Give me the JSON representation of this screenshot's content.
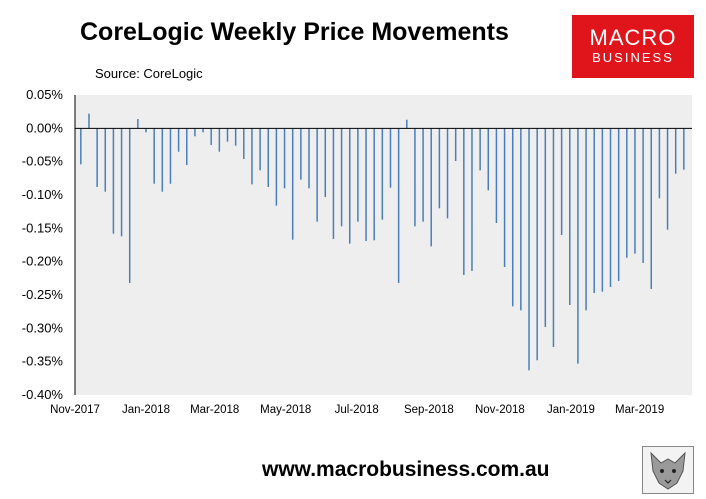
{
  "title": "CoreLogic Weekly Price Movements",
  "source": "Source: CoreLogic",
  "logo": {
    "line1": "MACRO",
    "line2": "BUSINESS"
  },
  "footer": "www.macrobusiness.com.au",
  "colors": {
    "bar": "#4a7ebb",
    "plot_bg": "#eeeeee",
    "logo_bg": "#e0141b"
  },
  "chart_data": {
    "type": "bar",
    "title": "CoreLogic Weekly Price Movements",
    "source": "Source: CoreLogic",
    "y_unit": "%",
    "ylim": [
      -0.4,
      0.05
    ],
    "y_ticks": [
      "0.05%",
      "0.00%",
      "-0.05%",
      "-0.10%",
      "-0.15%",
      "-0.20%",
      "-0.25%",
      "-0.30%",
      "-0.35%",
      "-0.40%"
    ],
    "y_tick_values": [
      0.05,
      0.0,
      -0.05,
      -0.1,
      -0.15,
      -0.2,
      -0.25,
      -0.3,
      -0.35,
      -0.4
    ],
    "x_ticks": [
      "Nov-2017",
      "Jan-2018",
      "Mar-2018",
      "May-2018",
      "Jul-2018",
      "Sep-2018",
      "Nov-2018",
      "Jan-2019",
      "Mar-2019"
    ],
    "x_tick_dates": [
      "2017-11-01",
      "2018-01-01",
      "2018-03-01",
      "2018-05-01",
      "2018-07-01",
      "2018-09-01",
      "2018-11-01",
      "2019-01-01",
      "2019-03-01"
    ],
    "grid": false,
    "legend": "none",
    "series": [
      {
        "points": [
          {
            "date": "2017-11-06",
            "value": -0.054
          },
          {
            "date": "2017-11-13",
            "value": 0.022
          },
          {
            "date": "2017-11-20",
            "value": -0.088
          },
          {
            "date": "2017-11-27",
            "value": -0.095
          },
          {
            "date": "2017-12-04",
            "value": -0.158
          },
          {
            "date": "2017-12-11",
            "value": -0.162
          },
          {
            "date": "2017-12-18",
            "value": -0.232
          },
          {
            "date": "2017-12-25",
            "value": 0.014
          },
          {
            "date": "2018-01-01",
            "value": -0.006
          },
          {
            "date": "2018-01-08",
            "value": -0.083
          },
          {
            "date": "2018-01-15",
            "value": -0.095
          },
          {
            "date": "2018-01-22",
            "value": -0.083
          },
          {
            "date": "2018-01-29",
            "value": -0.035
          },
          {
            "date": "2018-02-05",
            "value": -0.055
          },
          {
            "date": "2018-02-12",
            "value": -0.012
          },
          {
            "date": "2018-02-19",
            "value": -0.006
          },
          {
            "date": "2018-02-26",
            "value": -0.025
          },
          {
            "date": "2018-03-05",
            "value": -0.035
          },
          {
            "date": "2018-03-12",
            "value": -0.02
          },
          {
            "date": "2018-03-19",
            "value": -0.026
          },
          {
            "date": "2018-03-26",
            "value": -0.046
          },
          {
            "date": "2018-04-02",
            "value": -0.084
          },
          {
            "date": "2018-04-09",
            "value": -0.063
          },
          {
            "date": "2018-04-16",
            "value": -0.088
          },
          {
            "date": "2018-04-23",
            "value": -0.116
          },
          {
            "date": "2018-04-30",
            "value": -0.09
          },
          {
            "date": "2018-05-07",
            "value": -0.167
          },
          {
            "date": "2018-05-14",
            "value": -0.077
          },
          {
            "date": "2018-05-21",
            "value": -0.09
          },
          {
            "date": "2018-05-28",
            "value": -0.14
          },
          {
            "date": "2018-06-04",
            "value": -0.103
          },
          {
            "date": "2018-06-11",
            "value": -0.166
          },
          {
            "date": "2018-06-18",
            "value": -0.147
          },
          {
            "date": "2018-06-25",
            "value": -0.173
          },
          {
            "date": "2018-07-02",
            "value": -0.14
          },
          {
            "date": "2018-07-09",
            "value": -0.169
          },
          {
            "date": "2018-07-16",
            "value": -0.168
          },
          {
            "date": "2018-07-23",
            "value": -0.137
          },
          {
            "date": "2018-07-30",
            "value": -0.089
          },
          {
            "date": "2018-08-06",
            "value": -0.232
          },
          {
            "date": "2018-08-13",
            "value": 0.013
          },
          {
            "date": "2018-08-20",
            "value": -0.147
          },
          {
            "date": "2018-08-27",
            "value": -0.14
          },
          {
            "date": "2018-09-03",
            "value": -0.177
          },
          {
            "date": "2018-09-10",
            "value": -0.12
          },
          {
            "date": "2018-09-17",
            "value": -0.135
          },
          {
            "date": "2018-09-24",
            "value": -0.049
          },
          {
            "date": "2018-10-01",
            "value": -0.22
          },
          {
            "date": "2018-10-08",
            "value": -0.214
          },
          {
            "date": "2018-10-15",
            "value": -0.063
          },
          {
            "date": "2018-10-22",
            "value": -0.093
          },
          {
            "date": "2018-10-29",
            "value": -0.142
          },
          {
            "date": "2018-11-05",
            "value": -0.208
          },
          {
            "date": "2018-11-12",
            "value": -0.267
          },
          {
            "date": "2018-11-19",
            "value": -0.273
          },
          {
            "date": "2018-11-26",
            "value": -0.363
          },
          {
            "date": "2018-12-03",
            "value": -0.348
          },
          {
            "date": "2018-12-10",
            "value": -0.298
          },
          {
            "date": "2018-12-17",
            "value": -0.328
          },
          {
            "date": "2018-12-24",
            "value": -0.16
          },
          {
            "date": "2018-12-31",
            "value": -0.265
          },
          {
            "date": "2019-01-07",
            "value": -0.353
          },
          {
            "date": "2019-01-14",
            "value": -0.273
          },
          {
            "date": "2019-01-21",
            "value": -0.247
          },
          {
            "date": "2019-01-28",
            "value": -0.245
          },
          {
            "date": "2019-02-04",
            "value": -0.238
          },
          {
            "date": "2019-02-11",
            "value": -0.229
          },
          {
            "date": "2019-02-18",
            "value": -0.194
          },
          {
            "date": "2019-02-25",
            "value": -0.188
          },
          {
            "date": "2019-03-04",
            "value": -0.202
          },
          {
            "date": "2019-03-11",
            "value": -0.241
          },
          {
            "date": "2019-03-18",
            "value": -0.105
          },
          {
            "date": "2019-03-25",
            "value": -0.152
          },
          {
            "date": "2019-04-01",
            "value": -0.068
          },
          {
            "date": "2019-04-08",
            "value": -0.062
          }
        ]
      }
    ]
  }
}
